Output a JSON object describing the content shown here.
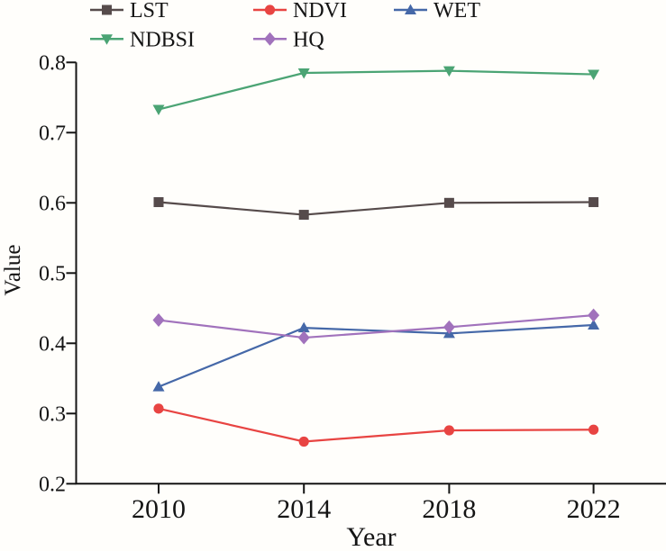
{
  "figure": {
    "background": "#fffefb",
    "axis_color": "#141414",
    "text_color": "#141414"
  },
  "chart_data": {
    "type": "line",
    "title": "",
    "xlabel": "Year",
    "ylabel": "Value",
    "x": [
      "2010",
      "2014",
      "2018",
      "2022"
    ],
    "ylim": [
      0.2,
      0.8
    ],
    "yticks": [
      0.2,
      0.3,
      0.4,
      0.5,
      0.6,
      0.7,
      0.8
    ],
    "grid": false,
    "legend_position": "top",
    "legend_rows": [
      [
        "LST",
        "NDVI",
        "WET"
      ],
      [
        "NDBSI",
        "HQ"
      ]
    ],
    "series": [
      {
        "name": "LST",
        "marker": "square",
        "color": "#564b4b",
        "values": [
          0.601,
          0.583,
          0.6,
          0.601
        ]
      },
      {
        "name": "NDVI",
        "marker": "circle",
        "color": "#e84442",
        "values": [
          0.307,
          0.26,
          0.276,
          0.277
        ]
      },
      {
        "name": "WET",
        "marker": "triangle-up",
        "color": "#4568a8",
        "values": [
          0.338,
          0.422,
          0.414,
          0.426
        ]
      },
      {
        "name": "NDBSI",
        "marker": "triangle-down",
        "color": "#4ba474",
        "values": [
          0.733,
          0.785,
          0.788,
          0.783
        ]
      },
      {
        "name": "HQ",
        "marker": "diamond",
        "color": "#a172bc",
        "values": [
          0.433,
          0.408,
          0.423,
          0.44
        ]
      }
    ]
  }
}
